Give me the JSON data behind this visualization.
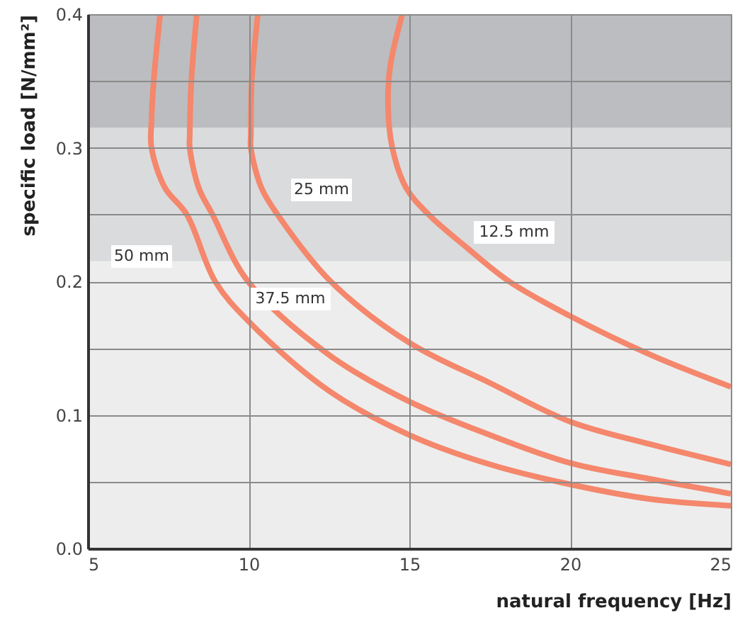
{
  "chart_data": {
    "type": "line",
    "xlabel": "natural frequency [Hz]",
    "ylabel": "specific load [N/mm²]",
    "xlim": [
      5,
      25
    ],
    "xticks": [
      5,
      10,
      15,
      20,
      25
    ],
    "ylim": [
      0,
      0.4
    ],
    "yticks": [
      {
        "value": 0,
        "label": "0.0"
      },
      {
        "value": 0.05,
        "label": null
      },
      0.1,
      {
        "value": 0.15,
        "label": null
      },
      0.2,
      {
        "value": 0.25,
        "label": null
      },
      0.3,
      {
        "value": 0.35,
        "label": null
      },
      0.4
    ],
    "grid": true,
    "marker": "none",
    "line_style": "solid",
    "bands": [
      {
        "axis": "y",
        "from": 0,
        "to": 0.215,
        "color": "#ededed"
      },
      {
        "axis": "y",
        "from": 0.215,
        "to": 0.315,
        "color": "#dadbdd"
      },
      {
        "axis": "y",
        "from": 0.315,
        "to": 0.4,
        "color": "#bcbdc0"
      }
    ],
    "series": [
      {
        "color": "#f4876c",
        "x": [
          7.25,
          7.05,
          6.98,
          6.98,
          7.4,
          8.08,
          8.96,
          10,
          12.5,
          15,
          17.5,
          20,
          22.5,
          25
        ],
        "values": [
          0.4,
          0.35,
          0.32,
          0.3,
          0.27,
          0.25,
          0.2,
          0.17,
          0.118,
          0.085,
          0.063,
          0.048,
          0.037,
          0.032
        ]
      },
      {
        "color": "#f4876c",
        "x": [
          8.39,
          8.22,
          8.17,
          8.17,
          8.45,
          8.88,
          9.98,
          12.5,
          15,
          17.5,
          20,
          22.5,
          25
        ],
        "values": [
          0.4,
          0.35,
          0.31,
          0.3,
          0.27,
          0.25,
          0.2,
          0.145,
          0.11,
          0.085,
          0.064,
          0.052,
          0.041
        ]
      },
      {
        "color": "#f4876c",
        "x": [
          10.29,
          10.1,
          10.07,
          10.07,
          10.4,
          10.9,
          12.55,
          15,
          17.5,
          20,
          22.5,
          25
        ],
        "values": [
          0.4,
          0.35,
          0.31,
          0.3,
          0.27,
          0.25,
          0.2,
          0.154,
          0.124,
          0.095,
          0.078,
          0.063
        ]
      },
      {
        "color": "#f4876c",
        "x": [
          14.78,
          14.4,
          14.34,
          14.47,
          14.9,
          15.6,
          16.8,
          18.1,
          20,
          22.5,
          25
        ],
        "values": [
          0.4,
          0.36,
          0.33,
          0.3,
          0.27,
          0.25,
          0.225,
          0.2,
          0.174,
          0.145,
          0.121
        ]
      }
    ],
    "annotations": [
      "50 mm",
      "37.5 mm",
      "25 mm",
      "12.5 mm"
    ]
  }
}
